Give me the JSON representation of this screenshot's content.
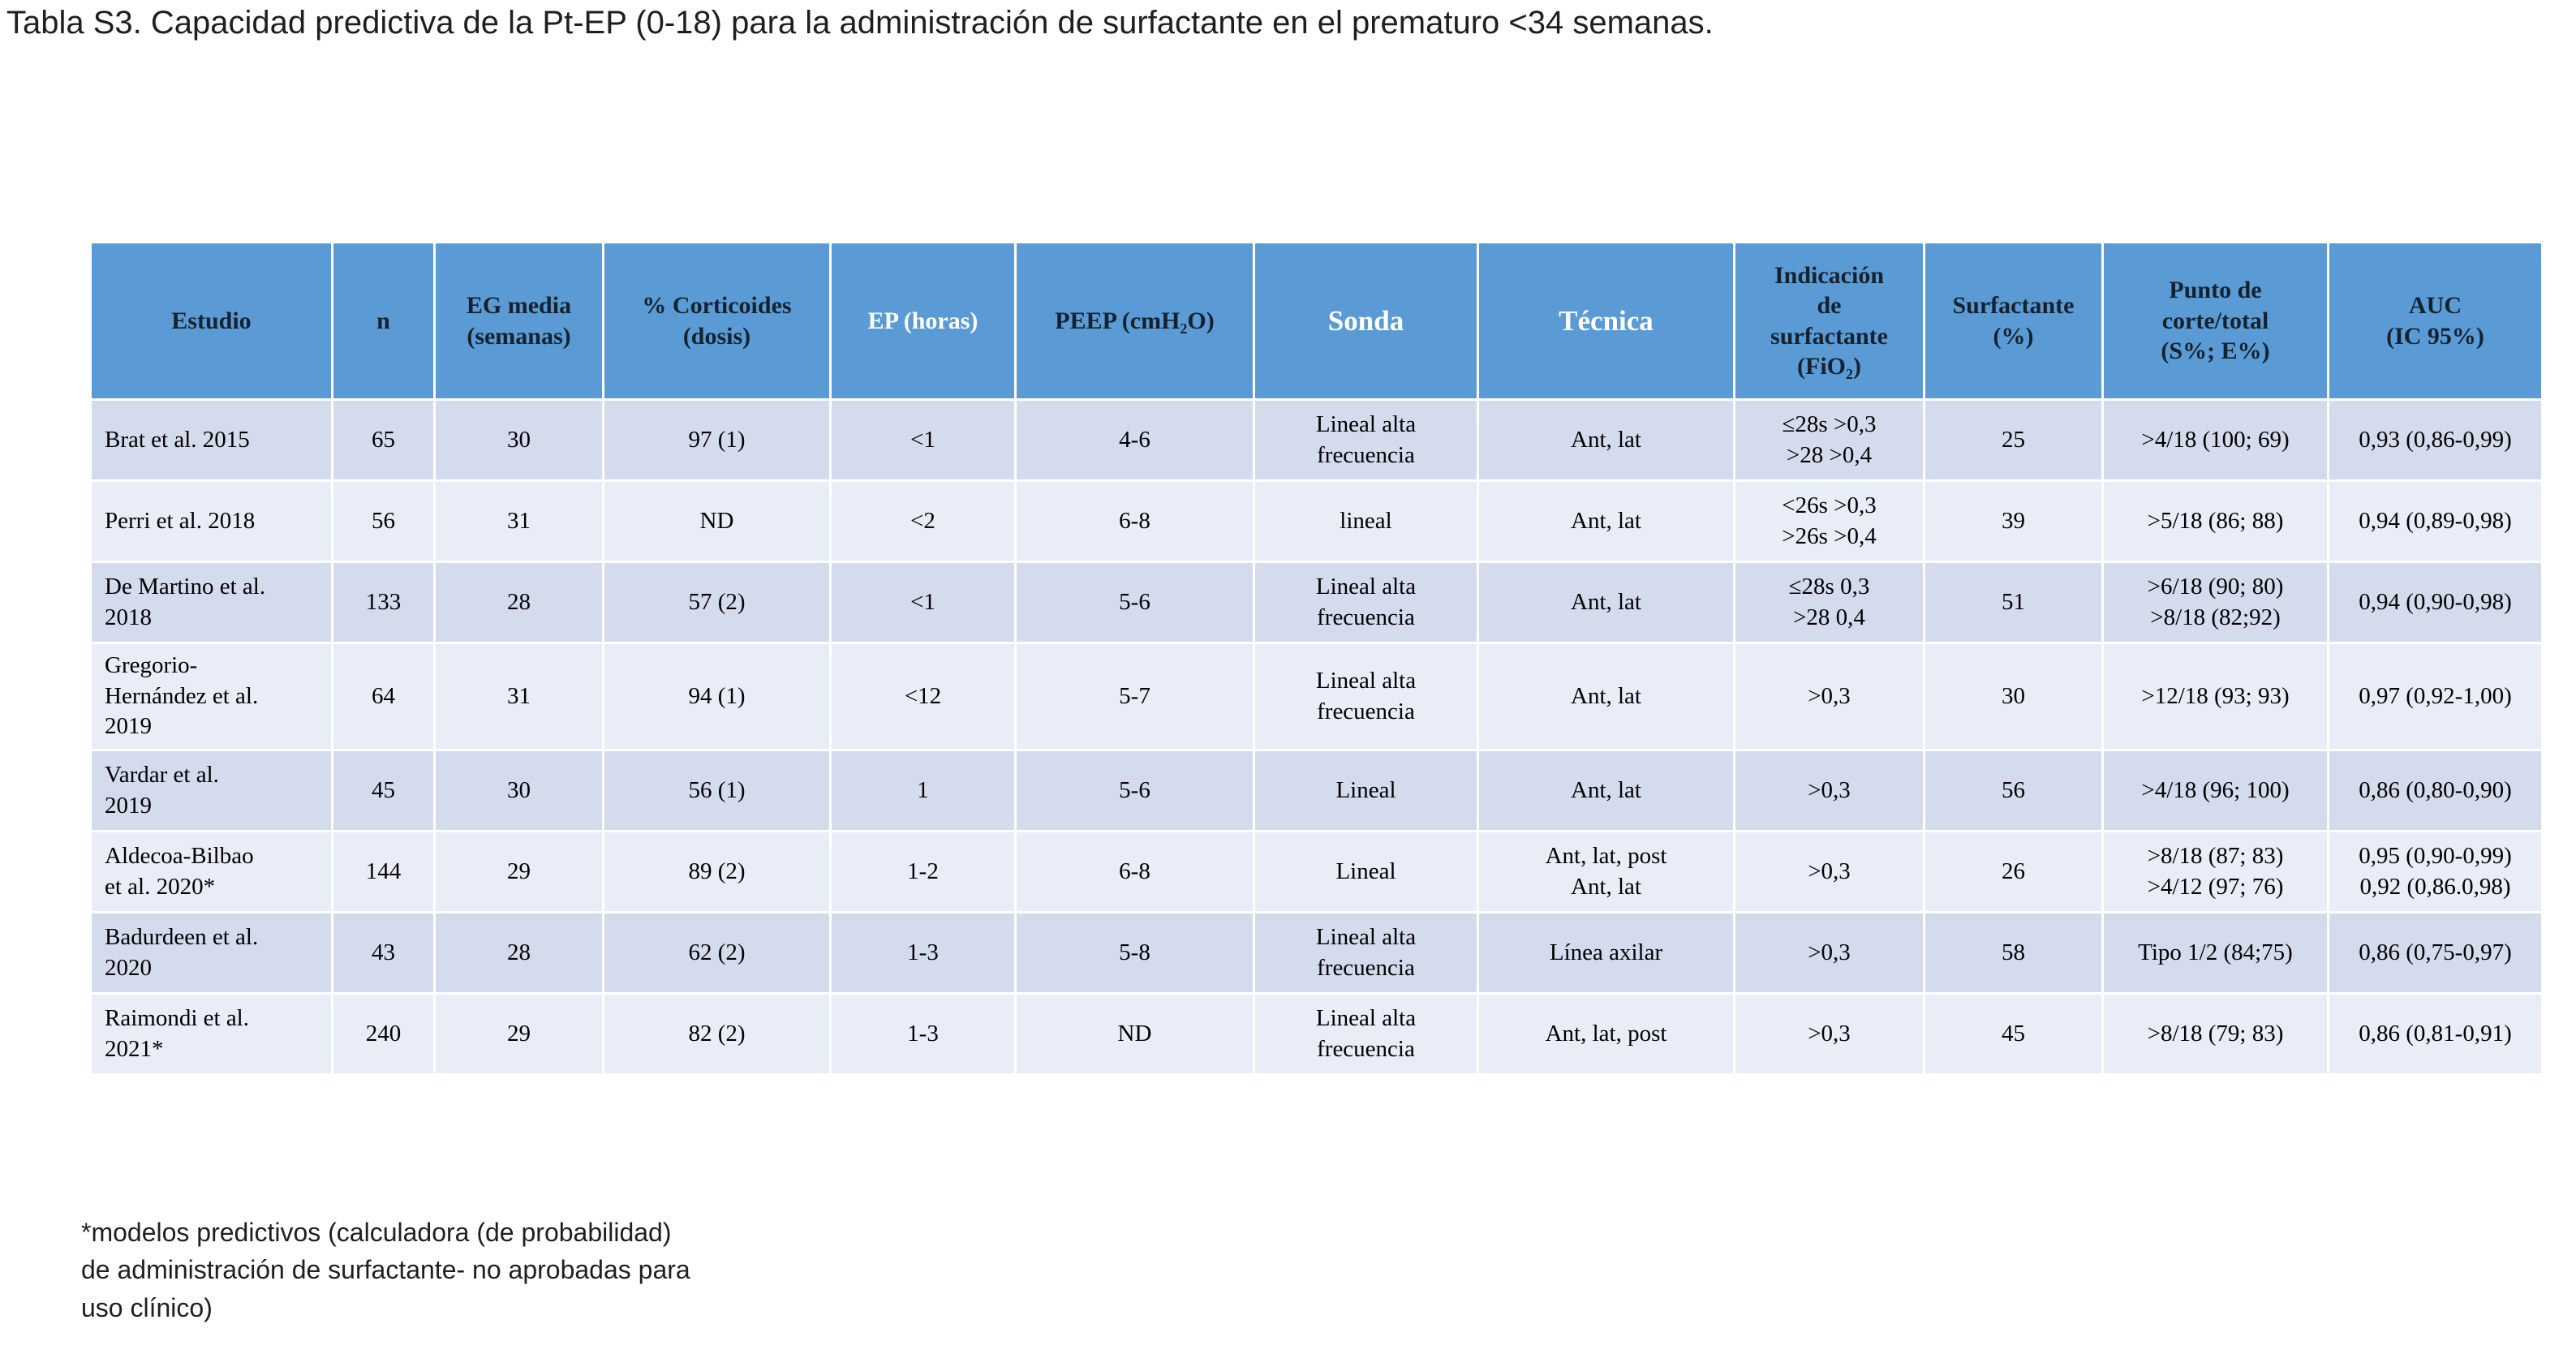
{
  "page": {
    "title": "Tabla S3. Capacidad predictiva de la Pt-EP (0-18) para la administración de surfactante en el prematuro <34 semanas.",
    "footnote": "*modelos predictivos (calculadora (de probabilidad)\nde administración de surfactante- no aprobadas para\nuso clínico)"
  },
  "colors": {
    "header_bg": "#5b9bd5",
    "band_dark": "#d4dbec",
    "band_light": "#e9edf7"
  },
  "table": {
    "columns": [
      {
        "label": "Estudio",
        "text": "dark",
        "size": "normal"
      },
      {
        "label": "n",
        "text": "dark",
        "size": "normal"
      },
      {
        "label": "EG media\n(semanas)",
        "text": "dark",
        "size": "normal"
      },
      {
        "label": "% Corticoides\n(dosis)",
        "text": "dark",
        "size": "normal"
      },
      {
        "label": "EP (horas)",
        "text": "light",
        "size": "normal"
      },
      {
        "label": "PEEP (cmH₂O)",
        "text": "dark",
        "size": "normal"
      },
      {
        "label": "Sonda",
        "text": "light",
        "size": "large"
      },
      {
        "label": "Técnica",
        "text": "light",
        "size": "large"
      },
      {
        "label": "Indicación\nde\nsurfactante\n(FiO₂)",
        "text": "dark",
        "size": "normal"
      },
      {
        "label": "Surfactante\n(%)",
        "text": "dark",
        "size": "normal"
      },
      {
        "label": "Punto de\ncorte/total\n(S%; E%)",
        "text": "dark",
        "size": "normal"
      },
      {
        "label": "AUC\n(IC 95%)",
        "text": "dark",
        "size": "normal"
      }
    ],
    "rows": [
      [
        "Brat et al. 2015",
        "65",
        "30",
        "97 (1)",
        "<1",
        "4-6",
        "Lineal alta\nfrecuencia",
        "Ant, lat",
        "≤28s >0,3\n>28 >0,4",
        "25",
        ">4/18 (100; 69)",
        "0,93 (0,86-0,99)"
      ],
      [
        "Perri et al. 2018",
        "56",
        "31",
        "ND",
        "<2",
        "6-8",
        "lineal",
        "Ant, lat",
        "<26s >0,3\n>26s >0,4",
        "39",
        ">5/18 (86; 88)",
        "0,94 (0,89-0,98)"
      ],
      [
        "De Martino et al.\n2018",
        "133",
        "28",
        "57 (2)",
        "<1",
        "5-6",
        "Lineal alta\nfrecuencia",
        "Ant, lat",
        "≤28s 0,3\n>28 0,4",
        "51",
        ">6/18 (90; 80)\n>8/18 (82;92)",
        "0,94 (0,90-0,98)"
      ],
      [
        "Gregorio-\nHernández et al.\n2019",
        "64",
        "31",
        "94 (1)",
        "<12",
        "5-7",
        "Lineal alta\nfrecuencia",
        "Ant, lat",
        ">0,3",
        "30",
        ">12/18 (93; 93)",
        "0,97 (0,92-1,00)"
      ],
      [
        "Vardar et al.\n2019",
        "45",
        "30",
        "56 (1)",
        "1",
        "5-6",
        "Lineal",
        "Ant, lat",
        ">0,3",
        "56",
        ">4/18 (96; 100)",
        "0,86 (0,80-0,90)"
      ],
      [
        "Aldecoa-Bilbao\net al. 2020*",
        "144",
        "29",
        "89 (2)",
        "1-2",
        "6-8",
        "Lineal",
        "Ant, lat, post\nAnt, lat",
        ">0,3",
        "26",
        ">8/18 (87; 83)\n>4/12 (97; 76)",
        "0,95 (0,90-0,99)\n0,92 (0,86.0,98)"
      ],
      [
        "Badurdeen et al.\n2020",
        "43",
        "28",
        "62 (2)",
        "1-3",
        "5-8",
        "Lineal alta\nfrecuencia",
        "Línea axilar",
        ">0,3",
        "58",
        "Tipo 1/2 (84;75)",
        "0,86 (0,75-0,97)"
      ],
      [
        "Raimondi et al.\n2021*",
        "240",
        "29",
        "82 (2)",
        "1-3",
        "ND",
        "Lineal alta\nfrecuencia",
        "Ant, lat, post",
        ">0,3",
        "45",
        ">8/18 (79; 83)",
        "0,86 (0,81-0,91)"
      ]
    ]
  }
}
